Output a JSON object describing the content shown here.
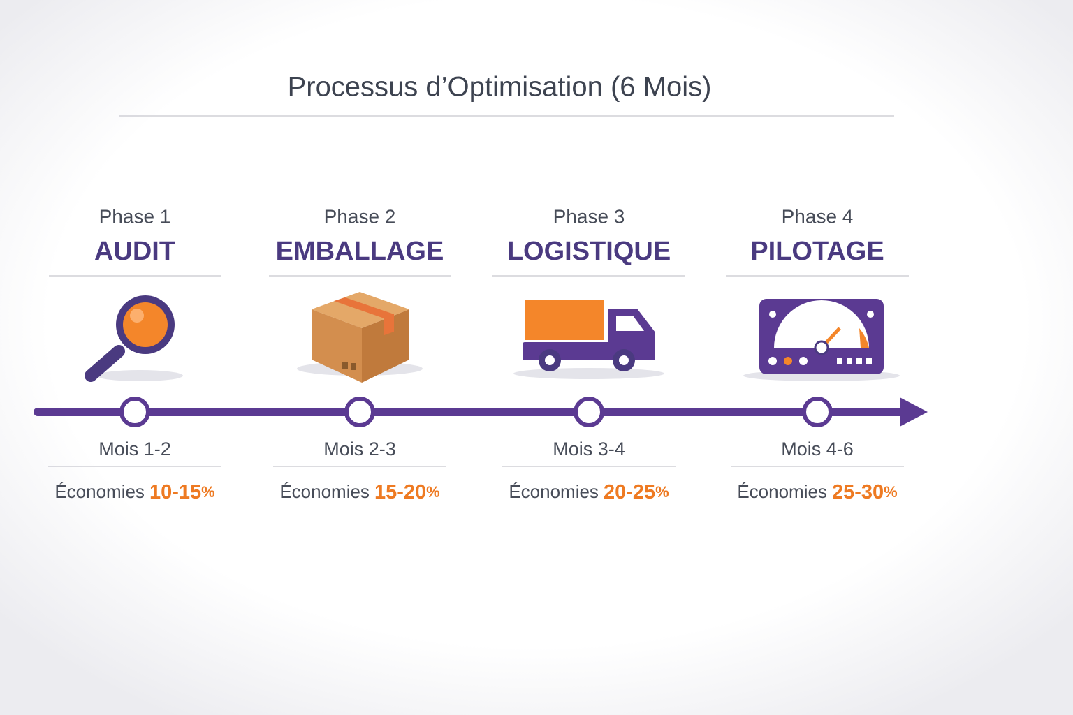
{
  "title": "Processus d’Optimisation (6 Mois)",
  "phases": [
    {
      "phase": "Phase 1",
      "name": "AUDIT",
      "months": "Mois 1-2",
      "savings_label": "Économies",
      "savings_range": "10-15",
      "savings_unit": "%"
    },
    {
      "phase": "Phase 2",
      "name": "EMBALLAGE",
      "months": "Mois 2-3",
      "savings_label": "Économies",
      "savings_range": "15-20",
      "savings_unit": "%"
    },
    {
      "phase": "Phase 3",
      "name": "LOGISTIQUE",
      "months": "Mois 3-4",
      "savings_label": "Économies",
      "savings_range": "20-25",
      "savings_unit": "%"
    },
    {
      "phase": "Phase 4",
      "name": "PILOTAGE",
      "months": "Mois 4-6",
      "savings_label": "Économies",
      "savings_range": "25-30",
      "savings_unit": "%"
    }
  ]
}
